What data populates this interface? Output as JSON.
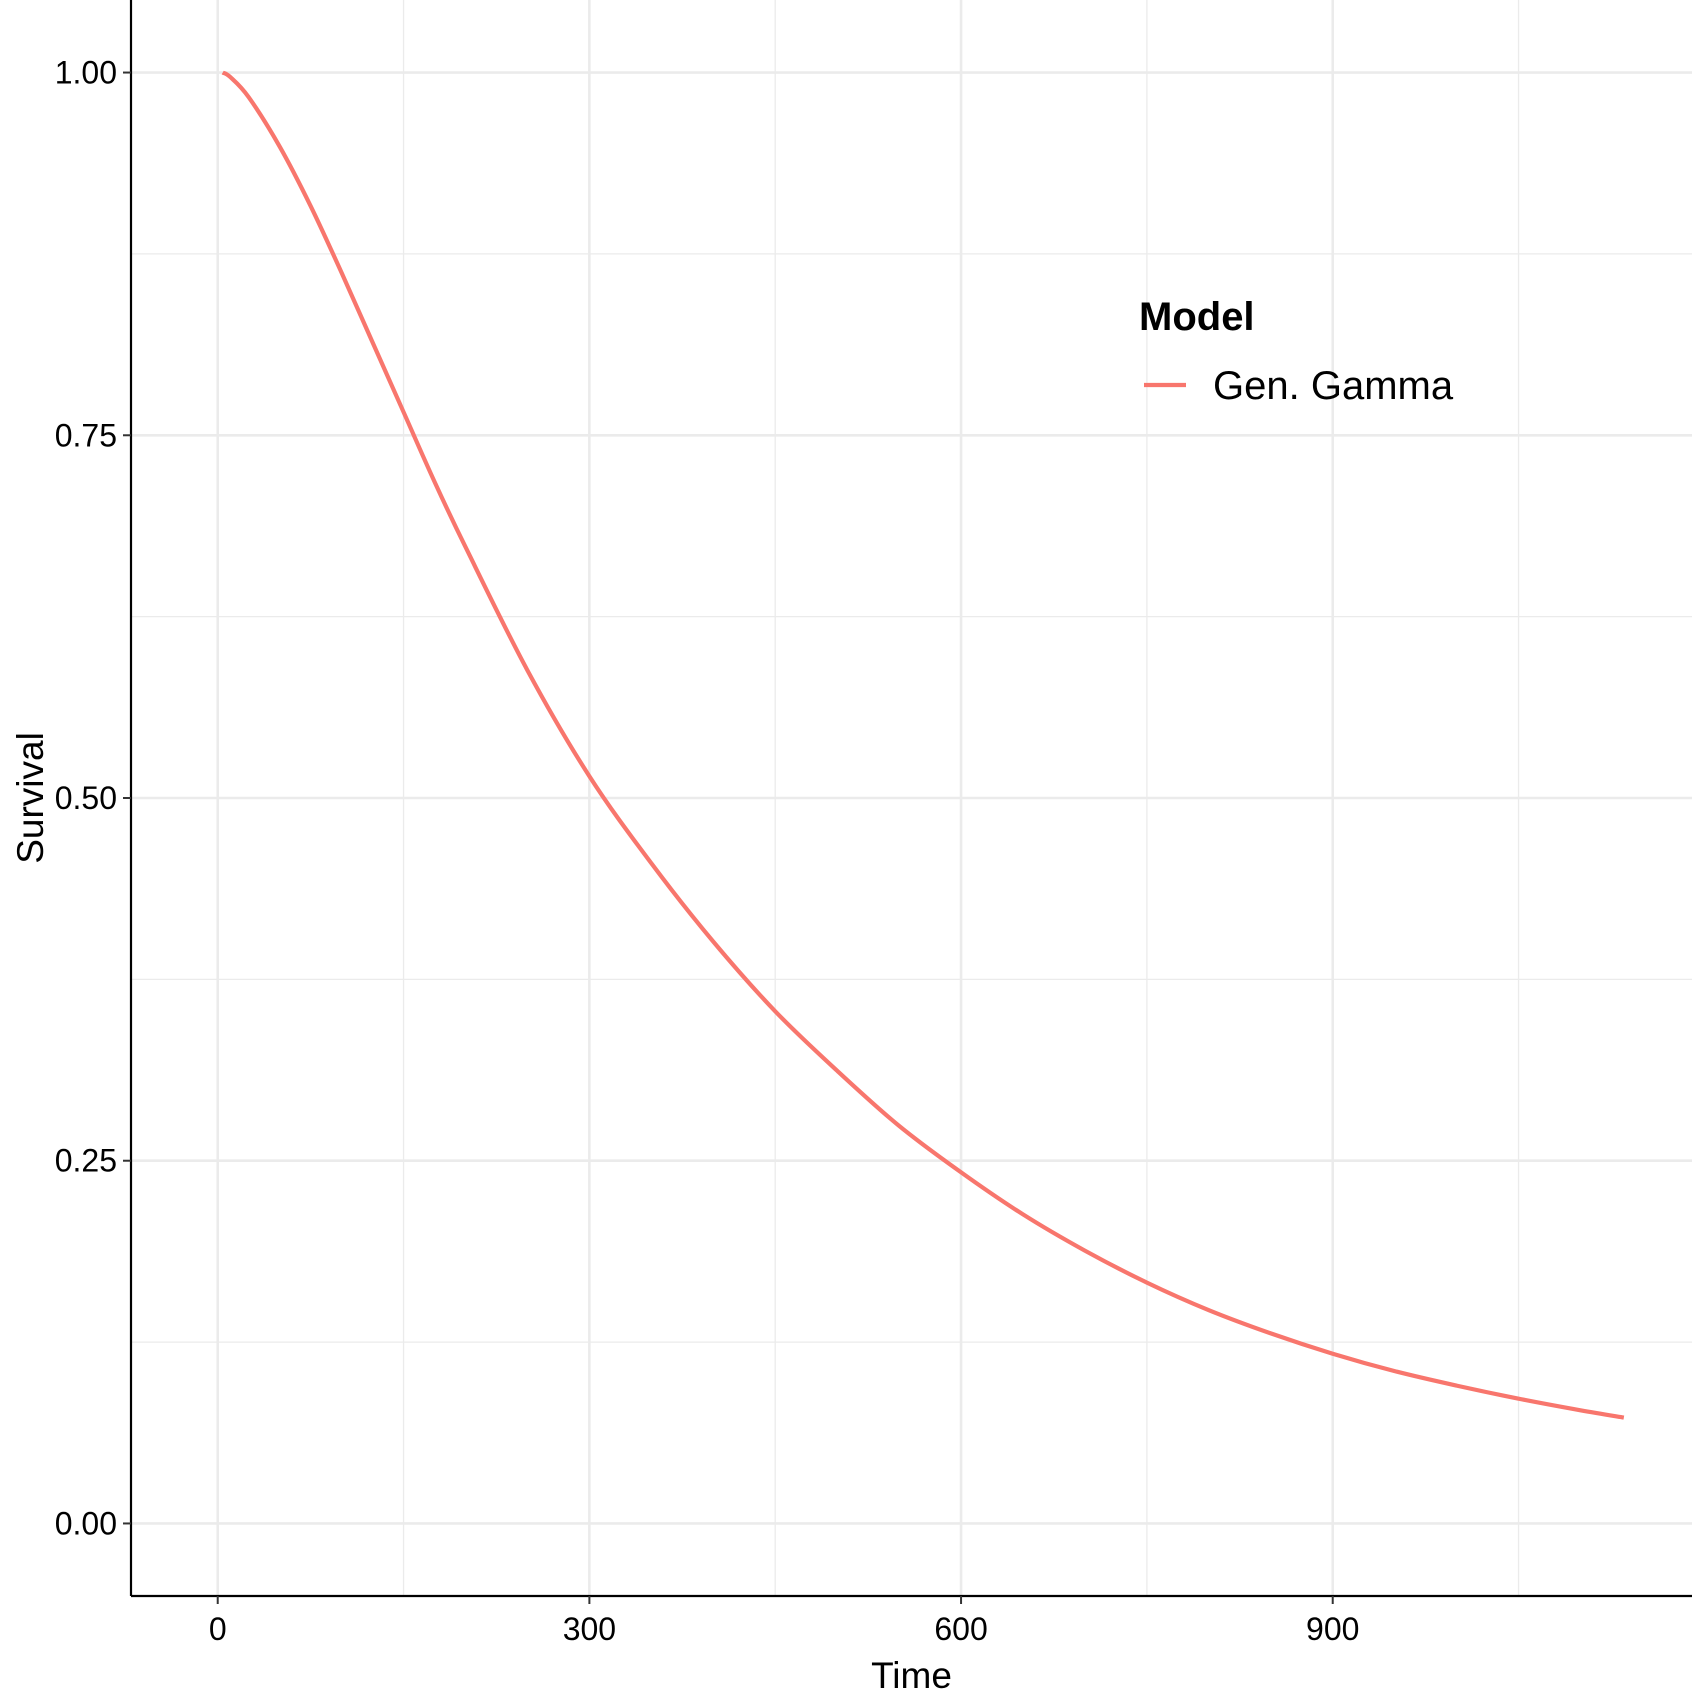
{
  "chart_data": {
    "type": "line",
    "xlabel": "Time",
    "ylabel": "Survival",
    "xlim": [
      -70,
      1190
    ],
    "ylim": [
      -0.05,
      1.05
    ],
    "x_ticks": [
      0,
      300,
      600,
      900
    ],
    "x_tick_labels": [
      "0",
      "300",
      "600",
      "900"
    ],
    "x_minor_ticks": [
      150,
      450,
      750,
      1050
    ],
    "y_ticks": [
      0,
      0.25,
      0.5,
      0.75,
      1.0
    ],
    "y_tick_labels": [
      "0.00",
      "0.25",
      "0.50",
      "0.75",
      "1.00"
    ],
    "y_minor_ticks": [
      0.125,
      0.375,
      0.625,
      0.875
    ],
    "grid": true,
    "legend": {
      "title": "Model",
      "position": "top-right"
    },
    "series": [
      {
        "name": "Gen. Gamma",
        "color": "#F8766D",
        "x": [
          4,
          10,
          25,
          50,
          75,
          100,
          125,
          150,
          175,
          200,
          250,
          300,
          350,
          400,
          450,
          500,
          550,
          600,
          650,
          700,
          750,
          800,
          850,
          900,
          950,
          1000,
          1050,
          1100,
          1135
        ],
        "y": [
          1.0,
          0.997,
          0.983,
          0.949,
          0.908,
          0.862,
          0.814,
          0.766,
          0.718,
          0.673,
          0.588,
          0.515,
          0.455,
          0.401,
          0.353,
          0.312,
          0.274,
          0.242,
          0.213,
          0.188,
          0.166,
          0.147,
          0.131,
          0.117,
          0.105,
          0.095,
          0.086,
          0.078,
          0.073
        ]
      }
    ]
  }
}
